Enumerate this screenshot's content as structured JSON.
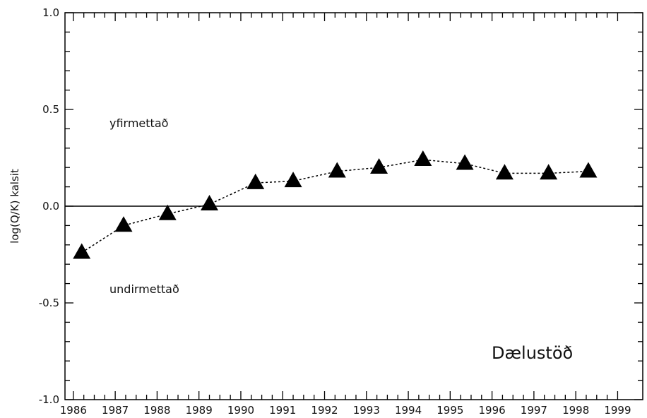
{
  "chart_data": {
    "type": "line",
    "title": "",
    "xlabel": "",
    "ylabel": "log(Q/K)  kalsit",
    "xlim": [
      1985.8,
      1999.6
    ],
    "ylim": [
      -1.0,
      1.0
    ],
    "x_tick_labels": [
      "1986",
      "1987",
      "1988",
      "1989",
      "1990",
      "1991",
      "1992",
      "1993",
      "1994",
      "1995",
      "1996",
      "1997",
      "1998",
      "1999"
    ],
    "y_tick_labels": [
      "1.0",
      "0.5",
      "0.0",
      "-0.5",
      "-1.0"
    ],
    "y_ticks": [
      1.0,
      0.5,
      0.0,
      -0.5,
      -1.0
    ],
    "reference_line_y": 0.0,
    "series": [
      {
        "x": [
          1986.2,
          1987.2,
          1988.25,
          1989.25,
          1990.35,
          1991.25,
          1992.3,
          1993.3,
          1994.35,
          1995.35,
          1996.3,
          1997.35,
          1998.3
        ],
        "y": [
          -0.24,
          -0.1,
          -0.04,
          0.01,
          0.12,
          0.13,
          0.18,
          0.2,
          0.24,
          0.22,
          0.17,
          0.17,
          0.18
        ],
        "marker": "triangle",
        "line_style": "dashed",
        "color": "#000000"
      }
    ],
    "annotations": {
      "upper_region": "yfirmettað",
      "lower_region": "undirmettað",
      "station": "Dælustöð"
    },
    "grid": false,
    "legend": "none"
  }
}
